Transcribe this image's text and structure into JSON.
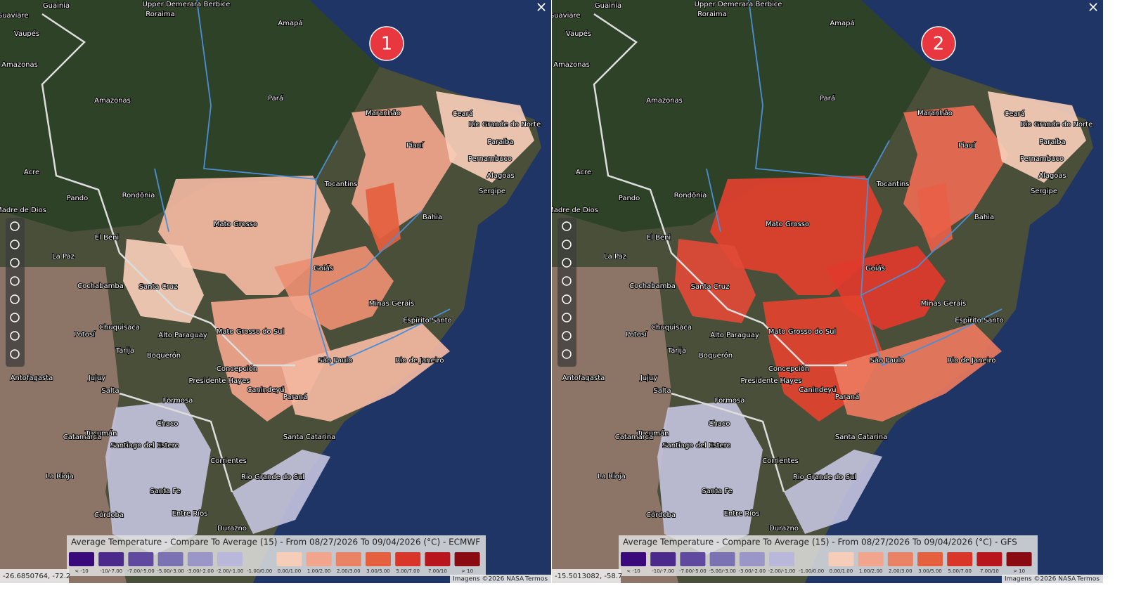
{
  "panels": [
    {
      "badge": "1",
      "legend_title": "Average Temperature - Compare To Average (15) - From 08/27/2026 To 09/04/2026 (°C) - ECMWF",
      "coords": "-26.6850764, -72.2",
      "close": "×"
    },
    {
      "badge": "2",
      "legend_title": "Average Temperature - Compare To Average (15) - From 08/27/2026 To 09/04/2026 (°C) - GFS",
      "coords": "-15.5013082, -58.7",
      "close": "×"
    }
  ],
  "legend_items": [
    {
      "label": "< -10",
      "color": "#3b0a7a"
    },
    {
      "label": "-10/-7.00",
      "color": "#4c2a8c"
    },
    {
      "label": "-7.00/-5.00",
      "color": "#5f4aa0"
    },
    {
      "label": "-5.00/-3.00",
      "color": "#7b72b4"
    },
    {
      "label": "-3.00/-2.00",
      "color": "#9a96c8"
    },
    {
      "label": "-2.00/-1.00",
      "color": "#b9b8da"
    },
    {
      "label": "-1.00/0.00",
      "color": "transparent"
    },
    {
      "label": "0.00/1.00",
      "color": "#f6cdb8"
    },
    {
      "label": "1.00/2.00",
      "color": "#f0a58c"
    },
    {
      "label": "2.00/3.00",
      "color": "#ea8266"
    },
    {
      "label": "3.00/5.00",
      "color": "#e4603f"
    },
    {
      "label": "5.00/7.00",
      "color": "#d9362a"
    },
    {
      "label": "7.00/10",
      "color": "#b8161c"
    },
    {
      "label": "> 10",
      "color": "#8a0a12"
    }
  ],
  "attribution": "Imagens ©2026 NASA",
  "terms": "Termos",
  "places": [
    "Guainia",
    "Upper Demerara Berbice",
    "Roraima",
    "Amapá",
    "Guaviare",
    "Vaupés",
    "Amazonas",
    "Amazonas",
    "Pará",
    "Maranhão",
    "Ceará",
    "Rio Grande do Norte",
    "Piauí",
    "Paraíba",
    "Pernambuco",
    "Alagoas",
    "Sergipe",
    "Tocantins",
    "Bahia",
    "Acre",
    "Rondônia",
    "Pando",
    "Madre de Dios",
    "Mato Grosso",
    "El Beni",
    "La Paz",
    "Goiás",
    "Cochabamba",
    "Santa Cruz",
    "Minas Gerais",
    "Chuquisaca",
    "Mato Grosso do Sul",
    "Espírito Santo",
    "Potosí",
    "Alto Paraguay",
    "Tarija",
    "Boquerón",
    "São Paulo",
    "Rio de Janeiro",
    "Antofagasta",
    "Jujuy",
    "Concepción",
    "Salta",
    "Presidente Hayes",
    "Canindeyú",
    "Paraná",
    "Formosa",
    "Chaco",
    "Santa Catarina",
    "Tucumán",
    "Catamarca",
    "Santiago del Estero",
    "Corrientes",
    "La Rioja",
    "Rio Grande do Sul",
    "Santa Fe",
    "Córdoba",
    "Entre Ríos",
    "Durazno"
  ]
}
